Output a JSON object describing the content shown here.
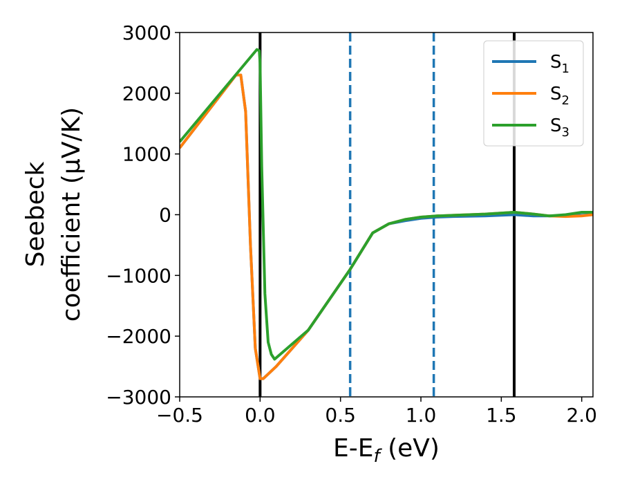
{
  "chart_data": {
    "type": "line",
    "xlabel": "E-E",
    "xlabel_sub": "f",
    "xlabel_unit": "(eV)",
    "ylabel_line1": "Seebeck",
    "ylabel_line2": "coefficient  (μV/K)",
    "xlim": [
      -0.5,
      2.07
    ],
    "ylim": [
      -3000,
      3000
    ],
    "xticks": [
      -0.5,
      0.0,
      0.5,
      1.0,
      1.5,
      2.0
    ],
    "xtick_labels": [
      "−0.5",
      "0.0",
      "0.5",
      "1.0",
      "1.5",
      "2.0"
    ],
    "yticks": [
      -3000,
      -2000,
      -1000,
      0,
      1000,
      2000,
      3000
    ],
    "ytick_labels": [
      "−3000",
      "−2000",
      "−1000",
      "0",
      "1000",
      "2000",
      "3000"
    ],
    "grid": false,
    "legend_position": "top-right",
    "vlines": [
      {
        "x": 0.0,
        "style": "solid",
        "color": "#000000"
      },
      {
        "x": 1.58,
        "style": "solid",
        "color": "#000000"
      },
      {
        "x": 0.56,
        "style": "dashed",
        "color": "#1f77b4"
      },
      {
        "x": 1.08,
        "style": "dashed",
        "color": "#1f77b4"
      }
    ],
    "series": [
      {
        "name": "S",
        "sub": "1",
        "color": "#1f77b4",
        "x": [
          -0.5,
          -0.15,
          -0.12,
          -0.09,
          -0.06,
          -0.03,
          0.0,
          0.02,
          0.1,
          0.3,
          0.56,
          0.7,
          0.8,
          0.9,
          1.0,
          1.1,
          1.2,
          1.4,
          1.58,
          1.7,
          1.8,
          1.9,
          2.0,
          2.07
        ],
        "y": [
          1100,
          2300,
          2300,
          1700,
          -500,
          -2200,
          -2700,
          -2700,
          -2500,
          -1900,
          -900,
          -300,
          -150,
          -100,
          -60,
          -40,
          -30,
          -20,
          0,
          -20,
          -20,
          -20,
          -10,
          0
        ]
      },
      {
        "name": "S",
        "sub": "2",
        "color": "#ff7f0e",
        "x": [
          -0.5,
          -0.15,
          -0.12,
          -0.09,
          -0.06,
          -0.03,
          0.0,
          0.02,
          0.1,
          0.3,
          0.56,
          0.7,
          0.8,
          0.9,
          1.0,
          1.1,
          1.2,
          1.4,
          1.58,
          1.7,
          1.8,
          1.9,
          2.0,
          2.07
        ],
        "y": [
          1100,
          2300,
          2300,
          1700,
          -500,
          -2200,
          -2700,
          -2700,
          -2500,
          -1900,
          -900,
          -300,
          -150,
          -80,
          -40,
          -20,
          -10,
          10,
          40,
          10,
          -20,
          -30,
          -20,
          0
        ]
      },
      {
        "name": "S",
        "sub": "3",
        "color": "#2ca02c",
        "x": [
          -0.5,
          -0.02,
          -0.005,
          0.0,
          0.01,
          0.03,
          0.05,
          0.07,
          0.09,
          0.3,
          0.56,
          0.7,
          0.8,
          0.9,
          1.0,
          1.1,
          1.2,
          1.4,
          1.58,
          1.7,
          1.8,
          1.9,
          2.0,
          2.07
        ],
        "y": [
          1200,
          2720,
          2700,
          2500,
          800,
          -1300,
          -2100,
          -2300,
          -2380,
          -1900,
          -900,
          -300,
          -150,
          -80,
          -40,
          -20,
          -10,
          10,
          40,
          10,
          -20,
          0,
          40,
          40
        ]
      }
    ]
  }
}
